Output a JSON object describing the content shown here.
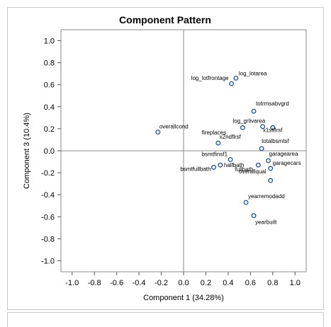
{
  "chart_data": {
    "type": "scatter",
    "title": "Component Pattern",
    "xlabel": "Component 1 (34.28%)",
    "ylabel": "Component 3 (10.4%)",
    "xlim": [
      -1.1,
      1.1
    ],
    "ylim": [
      -1.1,
      1.1
    ],
    "xticks": [
      "-1.0",
      "-0.8",
      "-0.6",
      "-0.4",
      "-0.2",
      "0.0",
      "0.2",
      "0.4",
      "0.6",
      "0.8",
      "1.0"
    ],
    "yticks": [
      "1.0",
      "0.8",
      "0.6",
      "0.4",
      "0.2",
      "0.0",
      "-0.2",
      "-0.4",
      "-0.6",
      "-0.8",
      "-1.0"
    ],
    "grid": false,
    "reference_lines": [
      {
        "axis": "x",
        "value": 0
      },
      {
        "axis": "y",
        "value": 0
      }
    ],
    "marker": "open-circle",
    "marker_color": "#1f4e9e",
    "points": [
      {
        "label": "log_lotarea",
        "x": 0.47,
        "y": 0.66
      },
      {
        "label": "log_lotfrontage",
        "x": 0.43,
        "y": 0.61
      },
      {
        "label": "totrmsabvgrd",
        "x": 0.63,
        "y": 0.36
      },
      {
        "label": "log_grlivarea",
        "x": 0.53,
        "y": 0.21
      },
      {
        "label": "x1stflrsf",
        "x": 0.8,
        "y": 0.21
      },
      {
        "label": "overallcond",
        "x": -0.23,
        "y": 0.17
      },
      {
        "label": "fireplaces",
        "x": 0.31,
        "y": 0.07
      },
      {
        "label": "x2ndflrsf",
        "x": 0.71,
        "y": 0.22
      },
      {
        "label": "totalbsmtsf",
        "x": 0.7,
        "y": 0.02
      },
      {
        "label": "bsmtfinsf1",
        "x": 0.42,
        "y": -0.08
      },
      {
        "label": "garagearea",
        "x": 0.76,
        "y": -0.09
      },
      {
        "label": "garagecars",
        "x": 0.78,
        "y": -0.16
      },
      {
        "label": "halfbath",
        "x": 0.33,
        "y": -0.13
      },
      {
        "label": "fullbath",
        "x": 0.67,
        "y": -0.13
      },
      {
        "label": "bsmtfullbath",
        "x": 0.27,
        "y": -0.15
      },
      {
        "label": "overallqual",
        "x": 0.78,
        "y": -0.27
      },
      {
        "label": "yearremodadd",
        "x": 0.56,
        "y": -0.47
      },
      {
        "label": "yearbuilt",
        "x": 0.63,
        "y": -0.59
      }
    ]
  }
}
